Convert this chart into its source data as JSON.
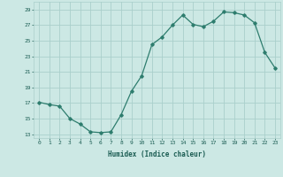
{
  "x": [
    0,
    1,
    2,
    3,
    4,
    5,
    6,
    7,
    8,
    9,
    10,
    11,
    12,
    13,
    14,
    15,
    16,
    17,
    18,
    19,
    20,
    21,
    22,
    23
  ],
  "y": [
    17.1,
    16.8,
    16.6,
    15.0,
    14.3,
    13.3,
    13.2,
    13.3,
    15.5,
    18.5,
    20.5,
    24.5,
    25.5,
    27.0,
    28.3,
    27.1,
    26.8,
    27.5,
    28.7,
    28.6,
    28.3,
    27.3,
    23.5,
    21.5
  ],
  "line_color": "#2e7d6e",
  "bg_color": "#cce8e4",
  "grid_color": "#aacfcb",
  "xlabel": "Humidex (Indice chaleur)",
  "ylabel_ticks": [
    13,
    15,
    17,
    19,
    21,
    23,
    25,
    27,
    29
  ],
  "xlim": [
    -0.5,
    23.5
  ],
  "ylim": [
    12.5,
    30.0
  ],
  "tick_color": "#1a5c52",
  "marker": "D",
  "markersize": 1.8,
  "linewidth": 0.9
}
